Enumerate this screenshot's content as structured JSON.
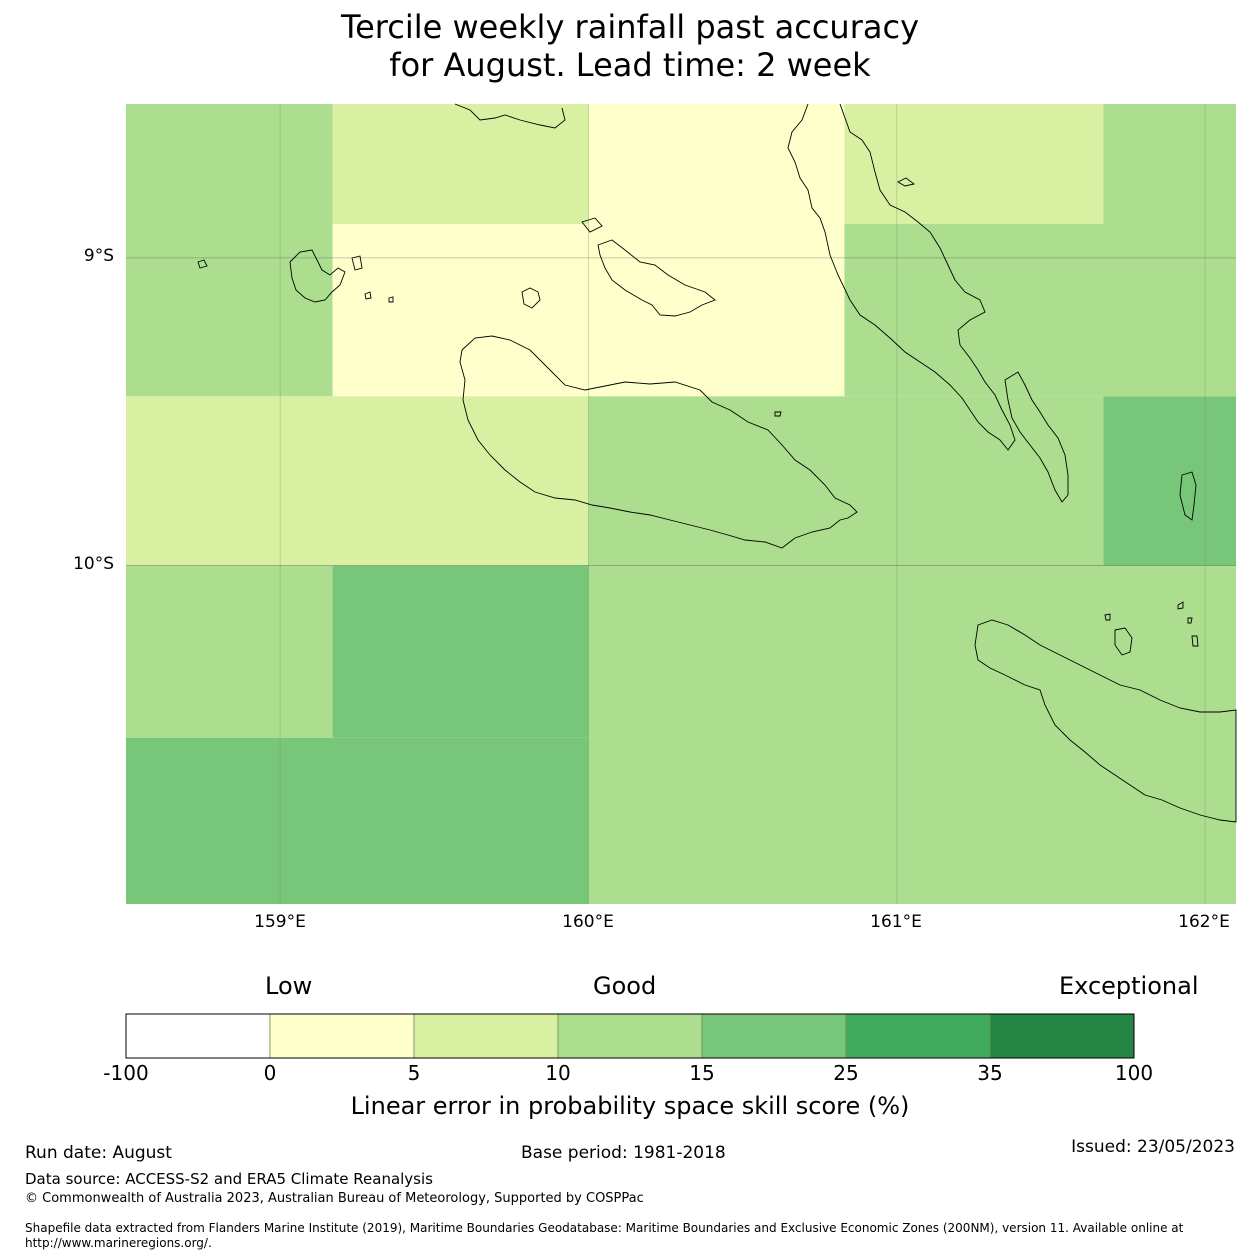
{
  "title": {
    "line1": "Tercile weekly rainfall past accuracy",
    "line2": "for August. Lead time: 2 week"
  },
  "colors": {
    "-100_0": "#ffffff",
    "0_5": "#ffffcc",
    "5_10": "#d9f0a3",
    "10_15": "#addd8e",
    "15_25": "#78c679",
    "25_35": "#41ab5d",
    "35_100": "#238443"
  },
  "map": {
    "lat_labels": [
      "9°S",
      "10°S"
    ],
    "lon_labels": [
      "159°E",
      "160°E",
      "161°E",
      "162°E"
    ],
    "grid_cells": [
      {
        "lon": [
          158.5,
          159.17
        ],
        "lat": [
          -8.5,
          -9.45
        ],
        "class": "10_15"
      },
      {
        "lon": [
          159.17,
          160.0
        ],
        "lat": [
          -8.5,
          -8.89
        ],
        "class": "5_10"
      },
      {
        "lon": [
          159.17,
          160.0
        ],
        "lat": [
          -8.89,
          -9.45
        ],
        "class": "0_5"
      },
      {
        "lon": [
          160.0,
          160.83
        ],
        "lat": [
          -8.5,
          -9.45
        ],
        "class": "0_5"
      },
      {
        "lon": [
          160.83,
          161.67
        ],
        "lat": [
          -8.5,
          -8.89
        ],
        "class": "5_10"
      },
      {
        "lon": [
          161.67,
          162.1
        ],
        "lat": [
          -8.5,
          -8.89
        ],
        "class": "10_15"
      },
      {
        "lon": [
          160.83,
          162.1
        ],
        "lat": [
          -8.89,
          -9.45
        ],
        "class": "10_15"
      },
      {
        "lon": [
          158.5,
          160.0
        ],
        "lat": [
          -9.45,
          -10.0
        ],
        "class": "5_10"
      },
      {
        "lon": [
          160.0,
          161.67
        ],
        "lat": [
          -9.45,
          -10.0
        ],
        "class": "10_15"
      },
      {
        "lon": [
          161.67,
          162.1
        ],
        "lat": [
          -9.45,
          -10.0
        ],
        "class": "15_25"
      },
      {
        "lon": [
          158.5,
          159.17
        ],
        "lat": [
          -10.0,
          -10.56
        ],
        "class": "10_15"
      },
      {
        "lon": [
          159.17,
          160.0
        ],
        "lat": [
          -10.0,
          -10.56
        ],
        "class": "15_25"
      },
      {
        "lon": [
          158.5,
          160.0
        ],
        "lat": [
          -10.56,
          -11.1
        ],
        "class": "15_25"
      },
      {
        "lon": [
          160.0,
          162.1
        ],
        "lat": [
          -10.0,
          -11.1
        ],
        "class": "10_15"
      }
    ]
  },
  "colorbar": {
    "heading_low": "Low",
    "heading_good": "Good",
    "heading_exceptional": "Exceptional",
    "ticks": [
      "-100",
      "0",
      "5",
      "10",
      "15",
      "25",
      "35",
      "100"
    ],
    "label": "Linear error in probability space skill score (%)"
  },
  "footer": {
    "run_date": "Run date: August",
    "base_period": "Base period: 1981-2018",
    "issued": "Issued: 23/05/2023",
    "data_source": "Data source: ACCESS-S2 and ERA5 Climate Reanalysis",
    "copyright": "© Commonwealth of Australia 2023, Australian Bureau of Meteorology, Supported by COSPPac",
    "shapefile_line1": "Shapefile data extracted from Flanders Marine Institute (2019), Maritime Boundaries Geodatabase: Maritime Boundaries and Exclusive Economic Zones (200NM), version 11. Available online at",
    "shapefile_line2": "http://www.marineregions.org/."
  }
}
